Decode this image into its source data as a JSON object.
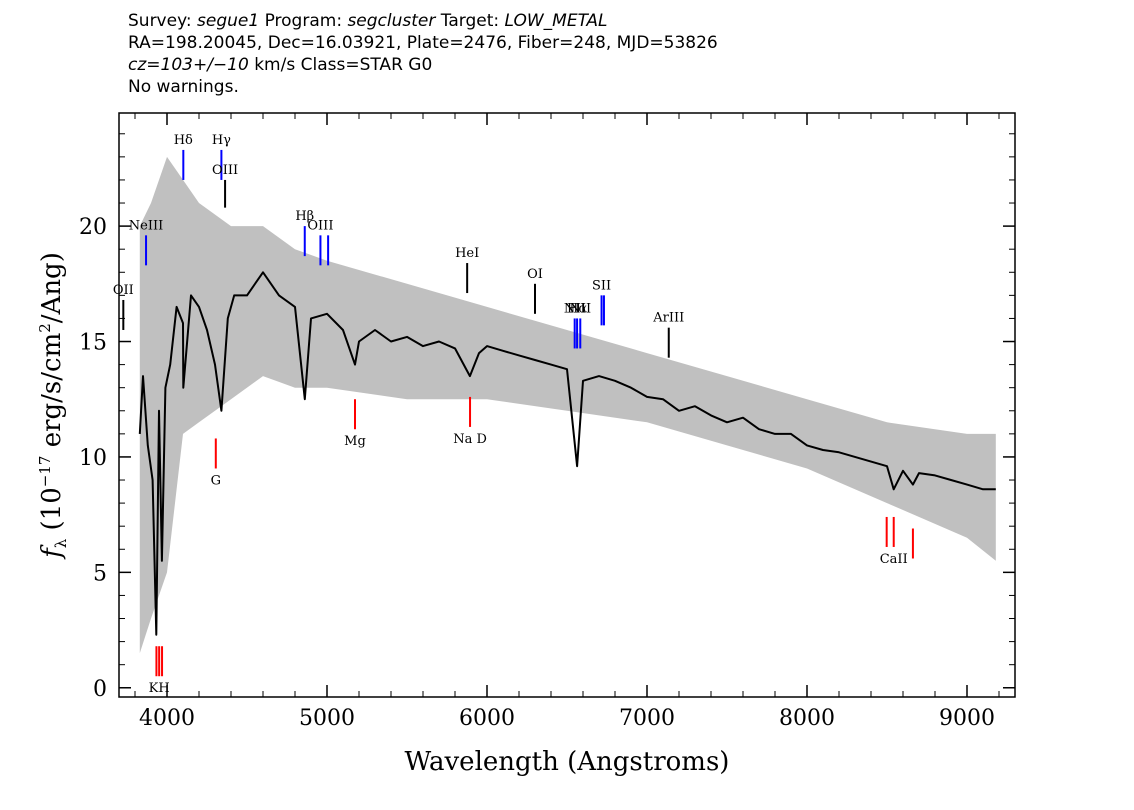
{
  "header": {
    "survey_label": "Survey: ",
    "survey": "segue1",
    "program_label": " Program: ",
    "program": "segcluster",
    "target_label": " Target: ",
    "target": "LOW_METAL",
    "line2": "RA=198.20045, Dec=16.03921, Plate=2476, Fiber=248, MJD=53826",
    "cz": "cz=103+/−10",
    "cz_rest": " km/s Class=STAR G0",
    "line4": "No warnings."
  },
  "chart_data": {
    "type": "line",
    "xlabel": "Wavelength (Angstroms)",
    "ylabel_prefix": "f",
    "ylabel_sub": "λ",
    "ylabel_main": " (10",
    "ylabel_exp": "−17",
    "ylabel_mid": " erg/s/cm",
    "ylabel_exp2": "2",
    "ylabel_end": "/Ang)",
    "xlim": [
      3700,
      9300
    ],
    "ylim": [
      -0.4,
      24.9
    ],
    "xticks": [
      4000,
      5000,
      6000,
      7000,
      8000,
      9000
    ],
    "yticks": [
      0,
      5,
      10,
      15,
      20
    ],
    "grid": false,
    "series": [
      {
        "role": "flux",
        "color": "#000000",
        "x": [
          3830,
          3850,
          3880,
          3910,
          3933,
          3950,
          3968,
          3990,
          4020,
          4060,
          4100,
          4102,
          4150,
          4200,
          4250,
          4300,
          4340,
          4380,
          4420,
          4500,
          4600,
          4700,
          4800,
          4861,
          4900,
          5000,
          5100,
          5175,
          5200,
          5300,
          5400,
          5500,
          5600,
          5700,
          5800,
          5893,
          5950,
          6000,
          6100,
          6200,
          6300,
          6400,
          6500,
          6563,
          6600,
          6700,
          6800,
          6900,
          7000,
          7100,
          7200,
          7300,
          7400,
          7500,
          7600,
          7700,
          7800,
          7900,
          8000,
          8100,
          8200,
          8300,
          8400,
          8500,
          8542,
          8600,
          8662,
          8700,
          8800,
          8900,
          9000,
          9100,
          9180
        ],
        "y": [
          11.0,
          13.5,
          10.5,
          9.0,
          2.3,
          12.0,
          5.5,
          13.0,
          14.0,
          16.5,
          15.8,
          13.0,
          17.0,
          16.5,
          15.5,
          14.0,
          12.0,
          16.0,
          17.0,
          17.0,
          18.0,
          17.0,
          16.5,
          12.5,
          16.0,
          16.2,
          15.5,
          14.0,
          15.0,
          15.5,
          15.0,
          15.2,
          14.8,
          15.0,
          14.7,
          13.5,
          14.5,
          14.8,
          14.6,
          14.4,
          14.2,
          14.0,
          13.8,
          9.6,
          13.3,
          13.5,
          13.3,
          13.0,
          12.6,
          12.5,
          12.0,
          12.2,
          11.8,
          11.5,
          11.7,
          11.2,
          11.0,
          11.0,
          10.5,
          10.3,
          10.2,
          10.0,
          9.8,
          9.6,
          8.6,
          9.4,
          8.8,
          9.3,
          9.2,
          9.0,
          8.8,
          8.6,
          8.6
        ]
      },
      {
        "role": "noise band upper",
        "color": "#c0c0c0",
        "x": [
          3830,
          3900,
          4000,
          4100,
          4200,
          4400,
          4600,
          4800,
          5000,
          5500,
          6000,
          6500,
          7000,
          7500,
          8000,
          8500,
          9000,
          9180
        ],
        "y": [
          20.0,
          21.0,
          23.0,
          22.0,
          21.0,
          20.0,
          20.0,
          19.0,
          18.5,
          17.5,
          16.5,
          15.5,
          14.5,
          13.5,
          12.5,
          11.5,
          11.0,
          11.0
        ]
      },
      {
        "role": "noise band lower",
        "color": "#c0c0c0",
        "x": [
          3830,
          3900,
          4000,
          4100,
          4200,
          4400,
          4600,
          4800,
          5000,
          5500,
          6000,
          6500,
          7000,
          7500,
          8000,
          8500,
          9000,
          9180
        ],
        "y": [
          1.5,
          3.0,
          5.0,
          11.0,
          11.5,
          12.5,
          13.5,
          13.0,
          13.0,
          12.5,
          12.5,
          12.0,
          11.5,
          10.5,
          9.5,
          8.0,
          6.5,
          5.5
        ]
      }
    ],
    "emission_lines": [
      {
        "label": "OII",
        "x": 3727,
        "y_low": 15.5,
        "y_high": 16.8,
        "color": "#000000"
      },
      {
        "label": "NeIII",
        "x": 3869,
        "y_low": 18.3,
        "y_high": 19.6,
        "color": "#0000ff"
      },
      {
        "label": "Hδ",
        "x": 4102,
        "y_low": 22.0,
        "y_high": 23.3,
        "color": "#0000ff"
      },
      {
        "label": "Hγ",
        "x": 4340,
        "y_low": 22.0,
        "y_high": 23.3,
        "color": "#0000ff"
      },
      {
        "label": "OIII",
        "x": 4363,
        "y_low": 20.8,
        "y_high": 22.0,
        "color": "#000000"
      },
      {
        "label": "Hβ",
        "x": 4861,
        "y_low": 18.7,
        "y_high": 20.0,
        "color": "#0000ff"
      },
      {
        "label": "OIII",
        "x": 4959,
        "y_low": 18.3,
        "y_high": 19.6,
        "color": "#0000ff"
      },
      {
        "label": "",
        "x": 5007,
        "y_low": 18.3,
        "y_high": 19.6,
        "color": "#0000ff"
      },
      {
        "label": "HeI",
        "x": 5876,
        "y_low": 17.1,
        "y_high": 18.4,
        "color": "#000000"
      },
      {
        "label": "OI",
        "x": 6300,
        "y_low": 16.2,
        "y_high": 17.5,
        "color": "#000000"
      },
      {
        "label": "NII",
        "x": 6548,
        "y_low": 14.7,
        "y_high": 16.0,
        "color": "#0000ff"
      },
      {
        "label": "Hα",
        "x": 6563,
        "y_low": 14.7,
        "y_high": 16.0,
        "color": "#0000ff"
      },
      {
        "label": "NII",
        "x": 6583,
        "y_low": 14.7,
        "y_high": 16.0,
        "color": "#0000ff"
      },
      {
        "label": "SII",
        "x": 6716,
        "y_low": 15.7,
        "y_high": 17.0,
        "color": "#0000ff"
      },
      {
        "label": "",
        "x": 6731,
        "y_low": 15.7,
        "y_high": 17.0,
        "color": "#0000ff"
      },
      {
        "label": "ArIII",
        "x": 7136,
        "y_low": 14.3,
        "y_high": 15.6,
        "color": "#000000"
      }
    ],
    "absorption_lines": [
      {
        "label": "",
        "x": 3934,
        "y_low": 0.5,
        "y_high": 1.8,
        "color": "#ff0000"
      },
      {
        "label": "KH",
        "x": 3951,
        "y_low": 0.5,
        "y_high": 1.8,
        "color": "#ff0000"
      },
      {
        "label": "",
        "x": 3969,
        "y_low": 0.5,
        "y_high": 1.8,
        "color": "#ff0000"
      },
      {
        "label": "G",
        "x": 4305,
        "y_low": 9.5,
        "y_high": 10.8,
        "color": "#ff0000"
      },
      {
        "label": "Mg",
        "x": 5175,
        "y_low": 11.2,
        "y_high": 12.5,
        "color": "#ff0000"
      },
      {
        "label": "Na D",
        "x": 5894,
        "y_low": 11.3,
        "y_high": 12.6,
        "color": "#ff0000"
      },
      {
        "label": "",
        "x": 8498,
        "y_low": 6.1,
        "y_high": 7.4,
        "color": "#ff0000"
      },
      {
        "label": "CaII",
        "x": 8542,
        "y_low": 6.1,
        "y_high": 7.4,
        "color": "#ff0000"
      },
      {
        "label": "",
        "x": 8662,
        "y_low": 5.6,
        "y_high": 6.9,
        "color": "#ff0000"
      }
    ]
  }
}
